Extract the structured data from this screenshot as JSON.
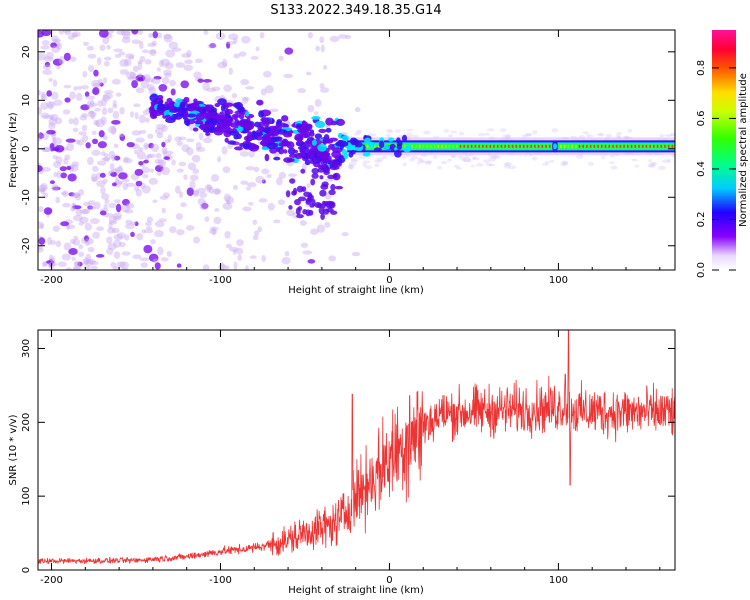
{
  "title": "S133.2022.349.18.35.G14",
  "chart_data": [
    {
      "type": "heatmap",
      "xlabel": "Height of straight line (km)",
      "ylabel": "Frequency (Hz)",
      "xlim": [
        -208,
        169
      ],
      "ylim": [
        -25,
        24.5
      ],
      "xticks": [
        -200,
        -100,
        0,
        100
      ],
      "yticks": [
        -20,
        -10,
        0,
        10,
        20
      ],
      "carrier_frequency_hz": 0.5,
      "carrier_start_height_km": -25,
      "turbulent_band": {
        "x_start": -140,
        "x_end": -28,
        "freq_start_hz": 9,
        "freq_end_hz": -12
      },
      "colorbar": {
        "label": "Normalized spectral amplitude",
        "range": [
          0,
          0.95
        ],
        "ticks": [
          "0.0",
          "0.2",
          "0.4",
          "0.6",
          "0.8"
        ],
        "tick_values": [
          0.0,
          0.2,
          0.4,
          0.6,
          0.8
        ],
        "colormap": "rainbow (white-violet-blue-cyan-green-yellow-orange-red-pink)"
      }
    },
    {
      "type": "line",
      "xlabel": "Height of straight line (km)",
      "ylabel": "SNR (10 * v/v)",
      "xlim": [
        -208,
        169
      ],
      "ylim": [
        0,
        325
      ],
      "xticks": [
        -200,
        -100,
        0,
        100
      ],
      "yticks": [
        0,
        100,
        200,
        300
      ],
      "series": [
        {
          "color": "#ee3333",
          "envelope_x": [
            -208,
            -150,
            -120,
            -100,
            -80,
            -60,
            -45,
            -35,
            -28,
            -20,
            -10,
            0,
            10,
            20,
            30,
            50,
            80,
            100,
            105,
            110,
            169
          ],
          "envelope_y": [
            12,
            13,
            18,
            25,
            30,
            40,
            55,
            60,
            70,
            100,
            125,
            150,
            175,
            195,
            210,
            215,
            218,
            220,
            222,
            215,
            213
          ],
          "spikes": [
            {
              "x": -22,
              "y": 238
            },
            {
              "x": 12,
              "y": 236
            },
            {
              "x": 104,
              "y": 265
            },
            {
              "x": 106,
              "y": 325
            },
            {
              "x": 107,
              "y": 115
            }
          ]
        }
      ]
    }
  ]
}
